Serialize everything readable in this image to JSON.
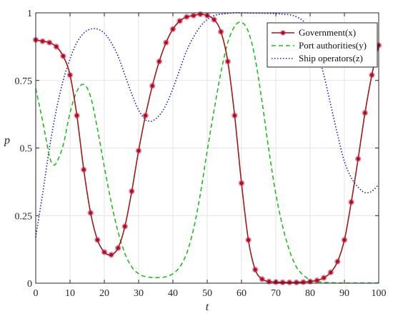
{
  "chart_data": {
    "type": "line",
    "xlabel": "t",
    "ylabel": "p",
    "xlim": [
      0,
      100
    ],
    "ylim": [
      0,
      1
    ],
    "x_ticks": [
      0,
      10,
      20,
      30,
      40,
      50,
      60,
      70,
      80,
      90,
      100
    ],
    "y_ticks": [
      0,
      0.25,
      0.5,
      0.75,
      1
    ],
    "x_tick_labels": [
      "0",
      "10",
      "20",
      "30",
      "40",
      "50",
      "60",
      "70",
      "80",
      "90",
      "100"
    ],
    "y_tick_labels": [
      "0",
      "0.25",
      "0.5",
      "0.75",
      "1"
    ],
    "grid": true,
    "legend_position": "top-right",
    "series": [
      {
        "name": "Government(x)",
        "color": "#a01818",
        "marker_color": "#e0206a",
        "style": "solid-with-markers",
        "points": [
          [
            0,
            0.9
          ],
          [
            2,
            0.895
          ],
          [
            4,
            0.89
          ],
          [
            6,
            0.875
          ],
          [
            8,
            0.84
          ],
          [
            10,
            0.77
          ],
          [
            12,
            0.62
          ],
          [
            14,
            0.42
          ],
          [
            16,
            0.26
          ],
          [
            18,
            0.16
          ],
          [
            20,
            0.115
          ],
          [
            22,
            0.105
          ],
          [
            24,
            0.13
          ],
          [
            26,
            0.21
          ],
          [
            28,
            0.34
          ],
          [
            30,
            0.49
          ],
          [
            32,
            0.62
          ],
          [
            34,
            0.73
          ],
          [
            36,
            0.82
          ],
          [
            38,
            0.89
          ],
          [
            40,
            0.94
          ],
          [
            42,
            0.97
          ],
          [
            44,
            0.985
          ],
          [
            46,
            0.99
          ],
          [
            48,
            0.995
          ],
          [
            50,
            0.99
          ],
          [
            52,
            0.975
          ],
          [
            54,
            0.93
          ],
          [
            56,
            0.82
          ],
          [
            58,
            0.62
          ],
          [
            60,
            0.37
          ],
          [
            62,
            0.16
          ],
          [
            64,
            0.05
          ],
          [
            66,
            0.015
          ],
          [
            68,
            0.006
          ],
          [
            70,
            0.004
          ],
          [
            72,
            0.003
          ],
          [
            74,
            0.003
          ],
          [
            76,
            0.003
          ],
          [
            78,
            0.004
          ],
          [
            80,
            0.006
          ],
          [
            82,
            0.01
          ],
          [
            84,
            0.02
          ],
          [
            86,
            0.04
          ],
          [
            88,
            0.08
          ],
          [
            90,
            0.16
          ],
          [
            92,
            0.3
          ],
          [
            94,
            0.46
          ],
          [
            96,
            0.63
          ],
          [
            98,
            0.77
          ],
          [
            100,
            0.88
          ]
        ]
      },
      {
        "name": "Port authorities(y)",
        "color": "#22bb22",
        "style": "dashed",
        "points": [
          [
            0,
            0.72
          ],
          [
            2,
            0.6
          ],
          [
            4,
            0.47
          ],
          [
            5,
            0.44
          ],
          [
            6,
            0.445
          ],
          [
            8,
            0.51
          ],
          [
            10,
            0.63
          ],
          [
            12,
            0.71
          ],
          [
            14,
            0.735
          ],
          [
            16,
            0.69
          ],
          [
            18,
            0.57
          ],
          [
            20,
            0.43
          ],
          [
            22,
            0.3
          ],
          [
            24,
            0.19
          ],
          [
            26,
            0.11
          ],
          [
            28,
            0.06
          ],
          [
            30,
            0.035
          ],
          [
            32,
            0.024
          ],
          [
            34,
            0.021
          ],
          [
            36,
            0.021
          ],
          [
            38,
            0.024
          ],
          [
            40,
            0.035
          ],
          [
            42,
            0.06
          ],
          [
            44,
            0.11
          ],
          [
            46,
            0.2
          ],
          [
            48,
            0.33
          ],
          [
            50,
            0.49
          ],
          [
            52,
            0.64
          ],
          [
            54,
            0.78
          ],
          [
            56,
            0.89
          ],
          [
            58,
            0.95
          ],
          [
            60,
            0.965
          ],
          [
            62,
            0.93
          ],
          [
            64,
            0.83
          ],
          [
            66,
            0.67
          ],
          [
            68,
            0.49
          ],
          [
            70,
            0.33
          ],
          [
            72,
            0.21
          ],
          [
            74,
            0.12
          ],
          [
            76,
            0.06
          ],
          [
            78,
            0.03
          ],
          [
            80,
            0.012
          ],
          [
            82,
            0.006
          ],
          [
            84,
            0.003
          ],
          [
            86,
            0.002
          ],
          [
            88,
            0.001
          ],
          [
            90,
            0.001
          ],
          [
            95,
            0.001
          ],
          [
            100,
            0.001
          ]
        ]
      },
      {
        "name": "Ship operators(z)",
        "color": "#1a1acc",
        "style": "dotted",
        "points": [
          [
            0,
            0.17
          ],
          [
            2,
            0.33
          ],
          [
            4,
            0.5
          ],
          [
            6,
            0.64
          ],
          [
            8,
            0.75
          ],
          [
            10,
            0.83
          ],
          [
            12,
            0.89
          ],
          [
            14,
            0.925
          ],
          [
            16,
            0.94
          ],
          [
            18,
            0.94
          ],
          [
            20,
            0.925
          ],
          [
            22,
            0.89
          ],
          [
            24,
            0.84
          ],
          [
            26,
            0.77
          ],
          [
            28,
            0.7
          ],
          [
            30,
            0.64
          ],
          [
            32,
            0.605
          ],
          [
            33,
            0.6
          ],
          [
            34,
            0.6
          ],
          [
            36,
            0.62
          ],
          [
            38,
            0.66
          ],
          [
            40,
            0.72
          ],
          [
            42,
            0.79
          ],
          [
            44,
            0.86
          ],
          [
            46,
            0.91
          ],
          [
            48,
            0.95
          ],
          [
            50,
            0.975
          ],
          [
            52,
            0.99
          ],
          [
            54,
            0.995
          ],
          [
            56,
            0.998
          ],
          [
            58,
            1.0
          ],
          [
            60,
            1.0
          ],
          [
            64,
            0.999
          ],
          [
            68,
            0.998
          ],
          [
            72,
            0.995
          ],
          [
            75,
            0.99
          ],
          [
            78,
            0.97
          ],
          [
            80,
            0.93
          ],
          [
            82,
            0.86
          ],
          [
            84,
            0.77
          ],
          [
            86,
            0.66
          ],
          [
            88,
            0.55
          ],
          [
            90,
            0.45
          ],
          [
            92,
            0.39
          ],
          [
            94,
            0.355
          ],
          [
            96,
            0.335
          ],
          [
            98,
            0.34
          ],
          [
            100,
            0.365
          ]
        ]
      }
    ]
  }
}
